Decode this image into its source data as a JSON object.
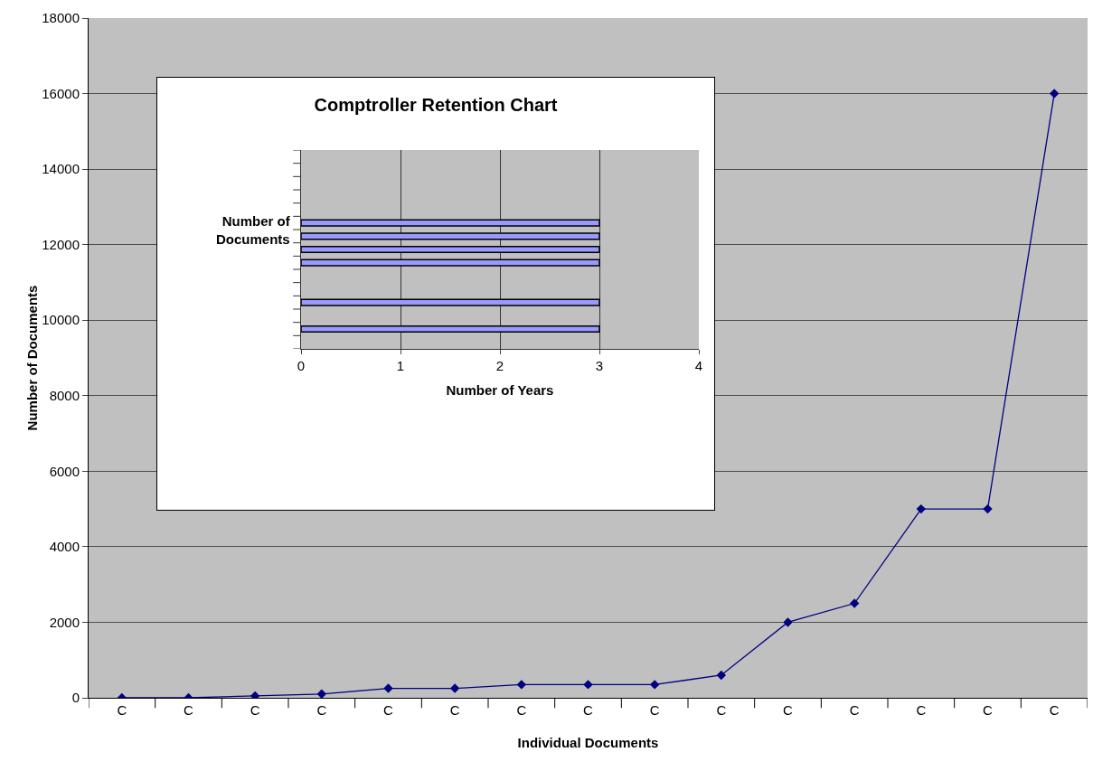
{
  "chart_data": [
    {
      "type": "line",
      "xlabel": "Individual Documents",
      "ylabel": "Number of Documents",
      "categories": [
        "C",
        "C",
        "C",
        "C",
        "C",
        "C",
        "C",
        "C",
        "C",
        "C",
        "C",
        "C",
        "C",
        "C",
        "C"
      ],
      "series": [
        {
          "color": "#000080",
          "values": [
            0,
            0,
            50,
            100,
            250,
            250,
            350,
            350,
            350,
            600,
            2000,
            2500,
            5000,
            5000,
            16000
          ]
        }
      ],
      "ylim": [
        0,
        18000
      ],
      "yticks": [
        0,
        2000,
        4000,
        6000,
        8000,
        10000,
        12000,
        14000,
        16000,
        18000
      ],
      "grid": "y",
      "marker": "diamond",
      "line_style": "solid"
    },
    {
      "type": "bar",
      "orientation": "horizontal",
      "title": "Comptroller Retention Chart",
      "xlabel": "Number of Years",
      "ylabel": "Number of Documents",
      "categories": [
        null,
        null,
        null,
        null,
        null,
        null,
        null,
        null,
        null,
        null,
        null,
        null,
        null,
        null,
        null
      ],
      "series": [
        {
          "color": "#9999ff",
          "values": [
            null,
            null,
            null,
            null,
            null,
            3,
            3,
            3,
            3,
            null,
            null,
            3,
            null,
            3,
            null
          ]
        }
      ],
      "xlim": [
        0,
        4
      ],
      "xticks": [
        0,
        1,
        2,
        3,
        4
      ],
      "grid": "x",
      "tick_labels": "x"
    }
  ]
}
